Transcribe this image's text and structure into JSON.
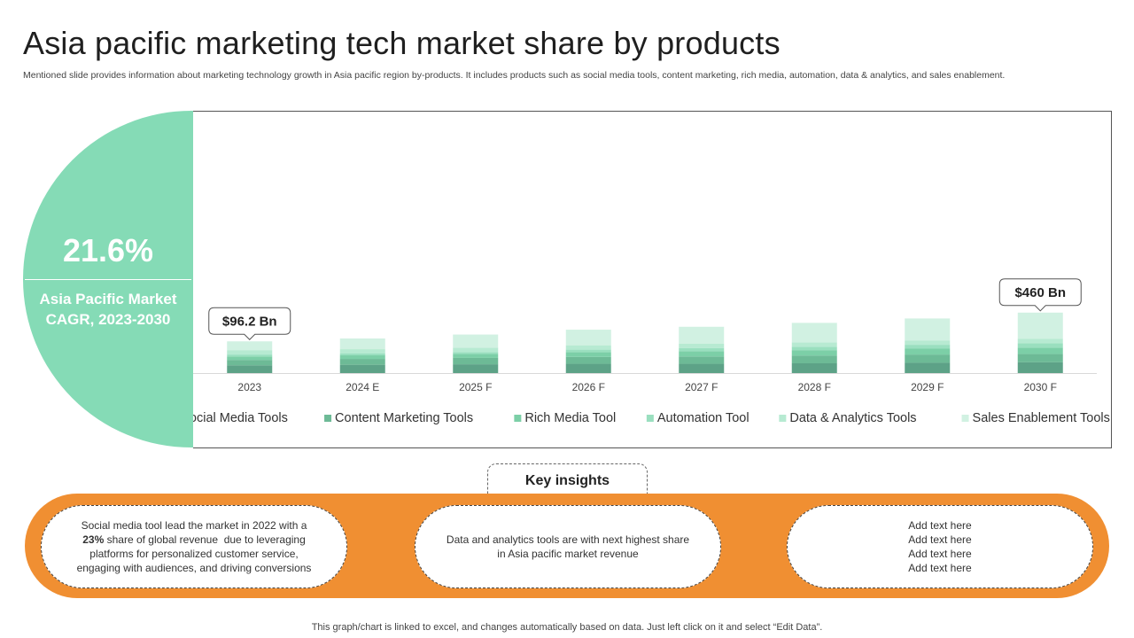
{
  "header": {
    "title": "Asia pacific marketing tech market share by products",
    "subtitle": "Mentioned slide provides information about marketing technology growth in Asia pacific region by-products. It includes products such as social media tools, content marketing, rich media, automation, data & analytics, and sales enablement."
  },
  "cagr": {
    "value": "21.6%",
    "label": "Asia Pacific Market CAGR, 2023-2030",
    "color": "#85dbb6"
  },
  "chart_data": {
    "type": "bar",
    "stacked": true,
    "title": "",
    "xlabel": "",
    "ylabel": "",
    "ylim": [
      0,
      500
    ],
    "grid": false,
    "legend_position": "bottom",
    "categories": [
      "2023",
      "2024 E",
      "2025 F",
      "2026 F",
      "2027 F",
      "2028 F",
      "2029 F",
      "2030 F"
    ],
    "series": [
      {
        "name": "Social Media Tools",
        "color": "#5da287",
        "values": [
          16,
          17,
          18,
          19,
          19,
          20,
          21,
          22
        ]
      },
      {
        "name": "Content Marketing Tools",
        "color": "#6dba96",
        "values": [
          11,
          12,
          13,
          14,
          15,
          16,
          17,
          17
        ]
      },
      {
        "name": "Rich Media Tool",
        "color": "#7ccfa7",
        "values": [
          7,
          8,
          8,
          10,
          11,
          11,
          12,
          13
        ]
      },
      {
        "name": "Automation Tool",
        "color": "#9adfbf",
        "values": [
          4,
          3,
          4,
          5,
          6,
          7,
          8,
          9
        ]
      },
      {
        "name": "Data & Analytics Tools",
        "color": "#b7ead2",
        "values": [
          9,
          9,
          9,
          9,
          9,
          9,
          9,
          9
        ]
      },
      {
        "name": "Sales Enablement Tools",
        "color": "#d1f1e2",
        "values": [
          18,
          22,
          27,
          32,
          35,
          40,
          45,
          54
        ]
      }
    ],
    "annotations": [
      {
        "category": "2023",
        "text": "$96.2 Bn"
      },
      {
        "category": "2030 F",
        "text": "$460 Bn"
      }
    ]
  },
  "insights": {
    "heading": "Key insights",
    "band_color": "#f08f32",
    "card1": {
      "line1": "Social media tool lead the market in 2022 with a",
      "bold": "23%",
      "line2_rest": " share of global revenue  due to leveraging",
      "line3": "platforms for personalized customer service,",
      "line4": "engaging with audiences, and driving conversions"
    },
    "card2": {
      "line1": "Data and analytics tools are with next highest share",
      "line2": "in Asia pacific market revenue"
    },
    "card3": {
      "lines": [
        "Add text here",
        "Add text here",
        "Add text here",
        "Add text here"
      ]
    }
  },
  "footer": {
    "note": "This graph/chart is linked to excel,  and changes automatically based on data. Just left click on it and select “Edit Data”."
  }
}
